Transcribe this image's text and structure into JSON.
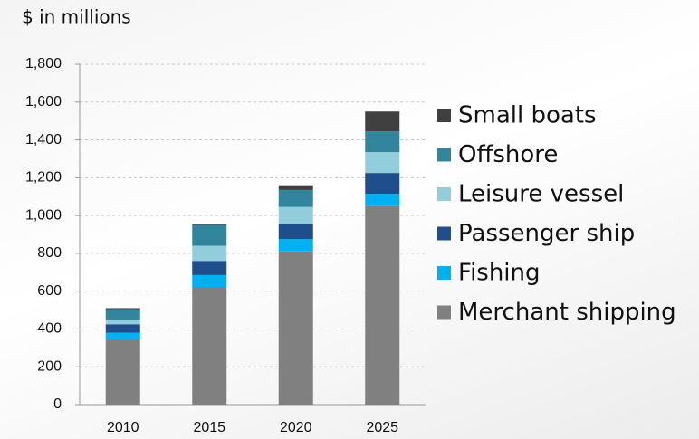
{
  "chart_data": {
    "type": "stacked_bar",
    "y_axis_label": "$ in millions",
    "categories": [
      "2010",
      "2015",
      "2020",
      "2025"
    ],
    "series": [
      {
        "name": "Merchant shipping",
        "color": "#808080",
        "values": [
          345,
          620,
          810,
          1050
        ]
      },
      {
        "name": "Fishing",
        "color": "#00b0f0",
        "values": [
          35,
          65,
          65,
          65
        ]
      },
      {
        "name": "Passenger ship",
        "color": "#1f4e8c",
        "values": [
          45,
          75,
          80,
          110
        ]
      },
      {
        "name": "Leisure vessel",
        "color": "#92cddc",
        "values": [
          25,
          80,
          90,
          110
        ]
      },
      {
        "name": "Offshore",
        "color": "#31859c",
        "values": [
          55,
          110,
          90,
          110
        ]
      },
      {
        "name": "Small boats",
        "color": "#404040",
        "values": [
          5,
          5,
          25,
          105
        ]
      }
    ],
    "ylim": [
      0,
      1800
    ],
    "yticks": [
      0,
      200,
      400,
      600,
      800,
      {
        "value": 1000,
        "label": "1,000"
      },
      {
        "value": 1200,
        "label": "1,200"
      },
      {
        "value": 1400,
        "label": "1,400"
      },
      {
        "value": 1600,
        "label": "1,600"
      },
      {
        "value": 1800,
        "label": "1,800"
      }
    ],
    "grid": true,
    "legend": "right"
  }
}
